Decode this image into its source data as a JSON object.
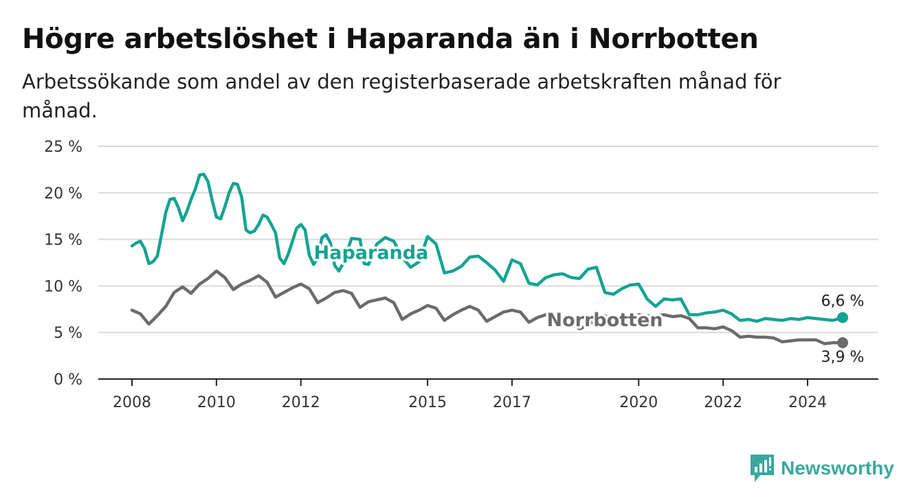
{
  "chart_data": {
    "type": "line",
    "title": "Högre arbetslöshet i Haparanda än i Norrbotten",
    "subtitle": "Arbetssökande som andel av den registerbaserade arbetskraften månad för månad.",
    "ylim": [
      0,
      25
    ],
    "y_ticks": [
      "0 %",
      "5 %",
      "10 %",
      "15 %",
      "20 %",
      "25 %"
    ],
    "x_ticks": [
      "2008",
      "2010",
      "2012",
      "2015",
      "2017",
      "2020",
      "2022",
      "2024"
    ],
    "xlim": [
      2008.0,
      2024.83
    ],
    "grid": true,
    "series": [
      {
        "name": "Haparanda",
        "color": "#13a392",
        "end_label": "6,6 %",
        "x": [
          2008.0,
          2008.1,
          2008.2,
          2008.3,
          2008.4,
          2008.5,
          2008.6,
          2008.7,
          2008.8,
          2008.9,
          2009.0,
          2009.1,
          2009.2,
          2009.3,
          2009.4,
          2009.5,
          2009.6,
          2009.7,
          2009.8,
          2009.9,
          2010.0,
          2010.1,
          2010.2,
          2010.3,
          2010.4,
          2010.5,
          2010.6,
          2010.7,
          2010.8,
          2010.9,
          2011.0,
          2011.1,
          2011.2,
          2011.3,
          2011.4,
          2011.5,
          2011.6,
          2011.7,
          2011.8,
          2011.9,
          2012.0,
          2012.1,
          2012.2,
          2012.3,
          2012.4,
          2012.5,
          2012.6,
          2012.7,
          2012.8,
          2012.9,
          2013.0,
          2013.2,
          2013.4,
          2013.5,
          2013.6,
          2013.8,
          2014.0,
          2014.2,
          2014.4,
          2014.6,
          2014.8,
          2015.0,
          2015.2,
          2015.4,
          2015.6,
          2015.8,
          2016.0,
          2016.2,
          2016.4,
          2016.6,
          2016.8,
          2017.0,
          2017.2,
          2017.4,
          2017.6,
          2017.8,
          2018.0,
          2018.2,
          2018.4,
          2018.6,
          2018.8,
          2019.0,
          2019.2,
          2019.4,
          2019.6,
          2019.8,
          2020.0,
          2020.2,
          2020.4,
          2020.6,
          2020.8,
          2021.0,
          2021.2,
          2021.4,
          2021.6,
          2021.8,
          2022.0,
          2022.2,
          2022.4,
          2022.6,
          2022.8,
          2023.0,
          2023.2,
          2023.4,
          2023.6,
          2023.8,
          2024.0,
          2024.2,
          2024.4,
          2024.6,
          2024.83
        ],
        "values": [
          14.3,
          14.6,
          14.8,
          14.0,
          12.4,
          12.6,
          13.2,
          15.5,
          17.9,
          19.3,
          19.4,
          18.4,
          17.0,
          18.0,
          19.3,
          20.4,
          21.9,
          22.0,
          21.2,
          19.2,
          17.4,
          17.2,
          18.5,
          20.0,
          21.0,
          20.9,
          19.5,
          16.0,
          15.7,
          15.9,
          16.6,
          17.6,
          17.4,
          16.6,
          15.7,
          13.0,
          12.4,
          13.4,
          14.8,
          16.2,
          16.6,
          16.0,
          13.3,
          12.3,
          13.0,
          15.2,
          15.5,
          14.6,
          12.2,
          11.6,
          12.4,
          15.1,
          15.0,
          12.4,
          12.3,
          14.5,
          15.2,
          14.8,
          13.1,
          12.0,
          12.6,
          15.3,
          14.5,
          11.4,
          11.6,
          12.1,
          13.1,
          13.2,
          12.5,
          11.7,
          10.5,
          12.8,
          12.4,
          10.3,
          10.1,
          10.9,
          11.2,
          11.3,
          10.9,
          10.8,
          11.8,
          12.0,
          9.3,
          9.1,
          9.7,
          10.1,
          10.2,
          8.6,
          7.8,
          8.6,
          8.5,
          8.6,
          6.9,
          6.9,
          7.1,
          7.2,
          7.4,
          7.0,
          6.3,
          6.4,
          6.2,
          6.5,
          6.4,
          6.3,
          6.5,
          6.4,
          6.6,
          6.5,
          6.4,
          6.3,
          6.6
        ]
      },
      {
        "name": "Norrbotten",
        "color": "#6b6b6d",
        "end_label": "3,9 %",
        "x": [
          2008.0,
          2008.2,
          2008.4,
          2008.6,
          2008.8,
          2009.0,
          2009.2,
          2009.4,
          2009.6,
          2009.8,
          2010.0,
          2010.2,
          2010.4,
          2010.6,
          2010.8,
          2011.0,
          2011.2,
          2011.4,
          2011.6,
          2011.8,
          2012.0,
          2012.2,
          2012.4,
          2012.6,
          2012.8,
          2013.0,
          2013.2,
          2013.4,
          2013.6,
          2013.8,
          2014.0,
          2014.2,
          2014.4,
          2014.6,
          2014.8,
          2015.0,
          2015.2,
          2015.4,
          2015.6,
          2015.8,
          2016.0,
          2016.2,
          2016.4,
          2016.6,
          2016.8,
          2017.0,
          2017.2,
          2017.4,
          2017.6,
          2017.8,
          2018.0,
          2018.2,
          2018.4,
          2018.6,
          2018.8,
          2019.0,
          2019.2,
          2019.4,
          2019.6,
          2019.8,
          2020.0,
          2020.2,
          2020.4,
          2020.6,
          2020.8,
          2021.0,
          2021.2,
          2021.4,
          2021.6,
          2021.8,
          2022.0,
          2022.2,
          2022.4,
          2022.6,
          2022.8,
          2023.0,
          2023.2,
          2023.4,
          2023.6,
          2023.8,
          2024.0,
          2024.2,
          2024.4,
          2024.6,
          2024.83
        ],
        "values": [
          7.4,
          7.0,
          5.9,
          6.8,
          7.8,
          9.3,
          9.9,
          9.2,
          10.2,
          10.8,
          11.6,
          10.9,
          9.6,
          10.2,
          10.6,
          11.1,
          10.4,
          8.8,
          9.3,
          9.8,
          10.2,
          9.7,
          8.2,
          8.7,
          9.3,
          9.5,
          9.2,
          7.7,
          8.3,
          8.5,
          8.7,
          8.2,
          6.4,
          7.0,
          7.4,
          7.9,
          7.6,
          6.3,
          6.9,
          7.4,
          7.8,
          7.4,
          6.2,
          6.7,
          7.2,
          7.4,
          7.2,
          6.1,
          6.6,
          6.9,
          6.8,
          6.5,
          5.9,
          5.4,
          5.8,
          6.4,
          6.8,
          6.2,
          6.0,
          6.6,
          6.9,
          6.8,
          6.8,
          6.9,
          6.7,
          6.8,
          6.5,
          5.5,
          5.5,
          5.4,
          5.6,
          5.2,
          4.5,
          4.6,
          4.5,
          4.5,
          4.4,
          4.0,
          4.1,
          4.2,
          4.2,
          4.2,
          3.8,
          3.9,
          3.9
        ]
      }
    ]
  },
  "logo": {
    "text": "Newsworthy",
    "color": "#3aa89e"
  }
}
